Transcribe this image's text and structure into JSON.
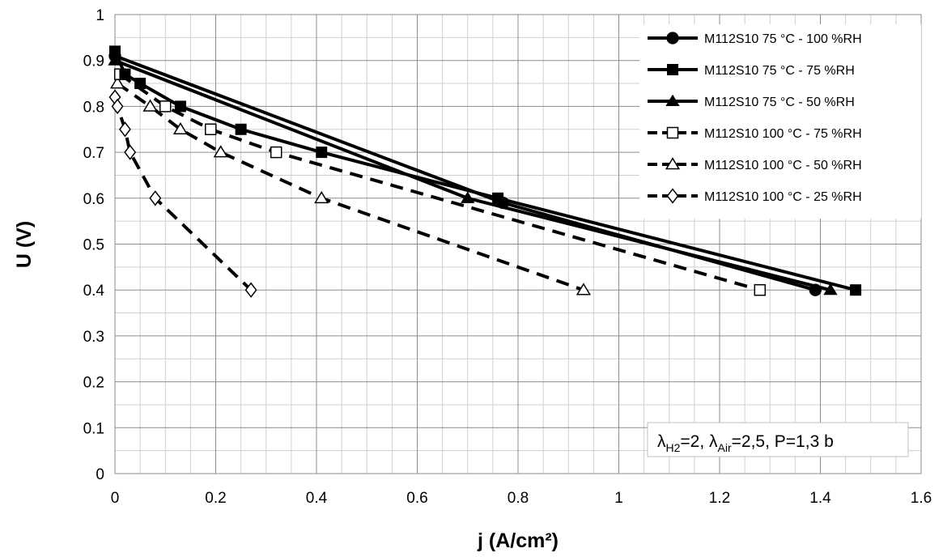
{
  "chart_data": {
    "type": "line",
    "xlabel": "j (A/cm²)",
    "ylabel": "U (V)",
    "xlim": [
      0,
      1.6
    ],
    "ylim": [
      0,
      1
    ],
    "x_ticks": [
      "0",
      "0.2",
      "0.4",
      "0.6",
      "0.8",
      "1",
      "1.2",
      "1.4",
      "1.6"
    ],
    "y_ticks": [
      "0",
      "0.1",
      "0.2",
      "0.3",
      "0.4",
      "0.5",
      "0.6",
      "0.7",
      "0.8",
      "0.9",
      "1"
    ],
    "grid": true,
    "legend_position": "top-right",
    "annotation": {
      "lambda1": "λ",
      "sub1": "H2",
      "part1": "=2, ",
      "lambda2": "λ",
      "sub2": "Air",
      "part2": "=2,5, P=1,3 b"
    },
    "series": [
      {
        "name": "M112S10 75 °C - 100 %RH",
        "marker": "circle",
        "filled": true,
        "dash": false,
        "width": 4,
        "points": [
          [
            0.0,
            0.91
          ],
          [
            0.77,
            0.59
          ],
          [
            1.39,
            0.4
          ]
        ]
      },
      {
        "name": "M112S10 75 °C - 75 %RH",
        "marker": "square",
        "filled": true,
        "dash": false,
        "width": 4,
        "points": [
          [
            0.0,
            0.92
          ],
          [
            0.02,
            0.87
          ],
          [
            0.05,
            0.85
          ],
          [
            0.13,
            0.8
          ],
          [
            0.25,
            0.75
          ],
          [
            0.41,
            0.7
          ],
          [
            0.76,
            0.6
          ],
          [
            1.47,
            0.4
          ]
        ]
      },
      {
        "name": "M112S10 75 °C - 50 %RH",
        "marker": "triangle",
        "filled": true,
        "dash": false,
        "width": 4,
        "points": [
          [
            0.0,
            0.9
          ],
          [
            0.7,
            0.6
          ],
          [
            1.42,
            0.4
          ]
        ]
      },
      {
        "name": "M112S10 100 °C - 75 %RH",
        "marker": "square",
        "filled": false,
        "dash": true,
        "width": 4,
        "points": [
          [
            0.01,
            0.87
          ],
          [
            0.1,
            0.8
          ],
          [
            0.19,
            0.75
          ],
          [
            0.32,
            0.7
          ],
          [
            1.28,
            0.4
          ]
        ]
      },
      {
        "name": "M112S10 100 °C - 50 %RH",
        "marker": "triangle",
        "filled": false,
        "dash": true,
        "width": 4,
        "points": [
          [
            0.005,
            0.85
          ],
          [
            0.07,
            0.8
          ],
          [
            0.13,
            0.75
          ],
          [
            0.21,
            0.7
          ],
          [
            0.41,
            0.6
          ],
          [
            0.93,
            0.4
          ]
        ]
      },
      {
        "name": "M112S10 100 °C - 25 %RH",
        "marker": "diamond",
        "filled": false,
        "dash": true,
        "width": 4,
        "points": [
          [
            0.0,
            0.82
          ],
          [
            0.005,
            0.8
          ],
          [
            0.02,
            0.75
          ],
          [
            0.03,
            0.7
          ],
          [
            0.08,
            0.6
          ],
          [
            0.27,
            0.4
          ]
        ]
      }
    ]
  }
}
